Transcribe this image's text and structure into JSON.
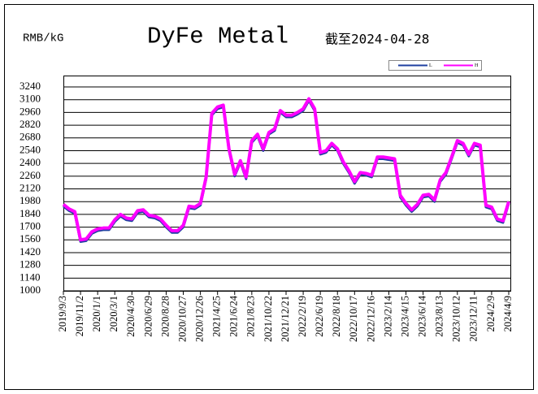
{
  "chart_data": {
    "type": "line",
    "title": "DyFe Metal",
    "unit": "RMB/kG",
    "subtitle": "截至2024-04-28",
    "categories": [
      "2019/9/3",
      null,
      null,
      "2019/11/2",
      null,
      null,
      "2020/1/1",
      null,
      null,
      "2020/3/1",
      null,
      null,
      "2020/4/30",
      null,
      null,
      "2020/6/29",
      null,
      null,
      "2020/8/28",
      null,
      null,
      "2020/10/27",
      null,
      null,
      "2020/12/26",
      null,
      null,
      "2021/4/25",
      null,
      null,
      "2021/6/24",
      null,
      null,
      "2021/8/23",
      null,
      null,
      "2021/10/22",
      null,
      null,
      "2021/12/21",
      null,
      null,
      "2022/2/19",
      null,
      null,
      "2022/6/19",
      null,
      null,
      "2022/8/18",
      null,
      null,
      "2022/10/17",
      null,
      null,
      "2022/12/16",
      null,
      null,
      "2023/2/14",
      null,
      null,
      "2023/4/15",
      null,
      null,
      "2023/6/14",
      null,
      null,
      "2023/8/13",
      null,
      null,
      "2023/10/12",
      null,
      null,
      "2023/12/11",
      null,
      null,
      "2024/2/9",
      null,
      null,
      "2024/4/9"
    ],
    "series": [
      {
        "name": "L",
        "color": "#1f3fa0",
        "values": [
          1930,
          1880,
          1850,
          1540,
          1550,
          1630,
          1660,
          1670,
          1670,
          1760,
          1820,
          1780,
          1770,
          1860,
          1870,
          1810,
          1800,
          1770,
          1700,
          1640,
          1640,
          1700,
          1910,
          1900,
          1940,
          2230,
          2930,
          3000,
          3020,
          2540,
          2260,
          2410,
          2230,
          2630,
          2700,
          2540,
          2720,
          2760,
          2960,
          2910,
          2910,
          2940,
          2980,
          3090,
          2980,
          2500,
          2520,
          2600,
          2540,
          2400,
          2300,
          2180,
          2280,
          2270,
          2250,
          2450,
          2450,
          2440,
          2430,
          2030,
          1940,
          1870,
          1930,
          2030,
          2040,
          1980,
          2200,
          2280,
          2450,
          2630,
          2600,
          2480,
          2600,
          2580,
          1920,
          1900,
          1770,
          1750,
          1960
        ]
      },
      {
        "name": "H",
        "color": "#ff00ff",
        "values": [
          1950,
          1900,
          1870,
          1560,
          1570,
          1650,
          1680,
          1690,
          1690,
          1780,
          1840,
          1800,
          1790,
          1880,
          1890,
          1830,
          1820,
          1790,
          1720,
          1660,
          1660,
          1720,
          1930,
          1920,
          1960,
          2250,
          2950,
          3020,
          3040,
          2560,
          2280,
          2430,
          2250,
          2650,
          2720,
          2560,
          2740,
          2780,
          2980,
          2930,
          2930,
          2960,
          3000,
          3110,
          3000,
          2520,
          2540,
          2620,
          2560,
          2420,
          2320,
          2200,
          2300,
          2290,
          2270,
          2470,
          2470,
          2460,
          2450,
          2050,
          1960,
          1890,
          1950,
          2050,
          2060,
          2000,
          2220,
          2300,
          2470,
          2650,
          2620,
          2500,
          2620,
          2600,
          1940,
          1920,
          1790,
          1770,
          1980
        ]
      }
    ],
    "ylim": [
      1000,
      3240
    ],
    "yticks": [
      1000,
      1140,
      1280,
      1420,
      1560,
      1700,
      1840,
      1980,
      2120,
      2260,
      2400,
      2540,
      2680,
      2820,
      2960,
      3100,
      3240
    ],
    "grid": true
  }
}
